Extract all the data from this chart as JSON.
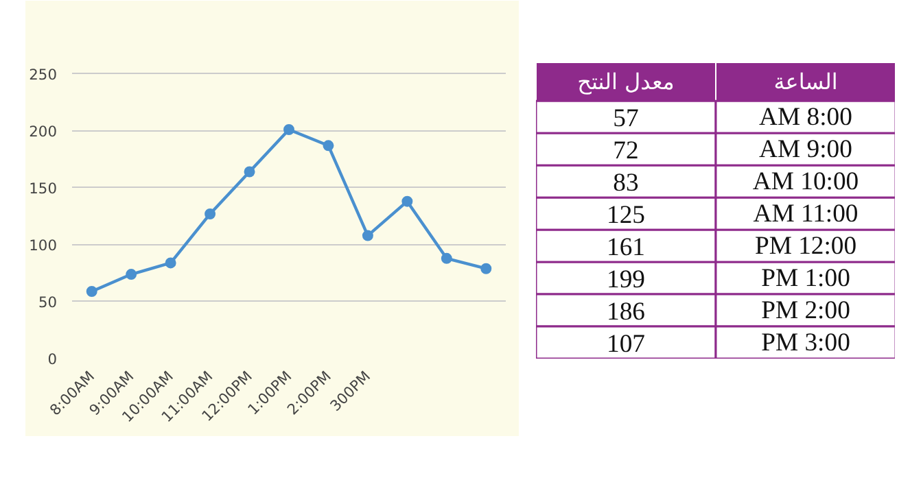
{
  "chart_data": [
    {
      "type": "line",
      "categories": [
        "8:00AM",
        "9:00AM",
        "10:00AM",
        "11:00AM",
        "12:00PM",
        "1:00PM",
        "2:00PM",
        "300PM",
        null,
        null,
        null
      ],
      "series": [
        {
          "color": "#4a90cf",
          "values": [
            59,
            74,
            84,
            127,
            164,
            201,
            187,
            108,
            138,
            88,
            79
          ]
        }
      ],
      "ylim": [
        0,
        260
      ],
      "yticks": [
        0,
        50,
        100,
        150,
        200,
        250
      ],
      "grid": "y",
      "marker": "circle",
      "line_style": "solid"
    },
    {
      "type": "other",
      "xlabel": "الساعة",
      "ylabel": "معدل النتح",
      "categories": [
        "AM 8:00",
        "AM 9:00",
        "AM 10:00",
        "AM 11:00",
        "PM 12:00",
        "PM 1:00",
        "PM 2:00",
        "PM 3:00"
      ],
      "values": [
        57,
        72,
        83,
        125,
        161,
        199,
        186,
        107
      ],
      "color": "#8e2a8b",
      "data_labels": true
    }
  ]
}
